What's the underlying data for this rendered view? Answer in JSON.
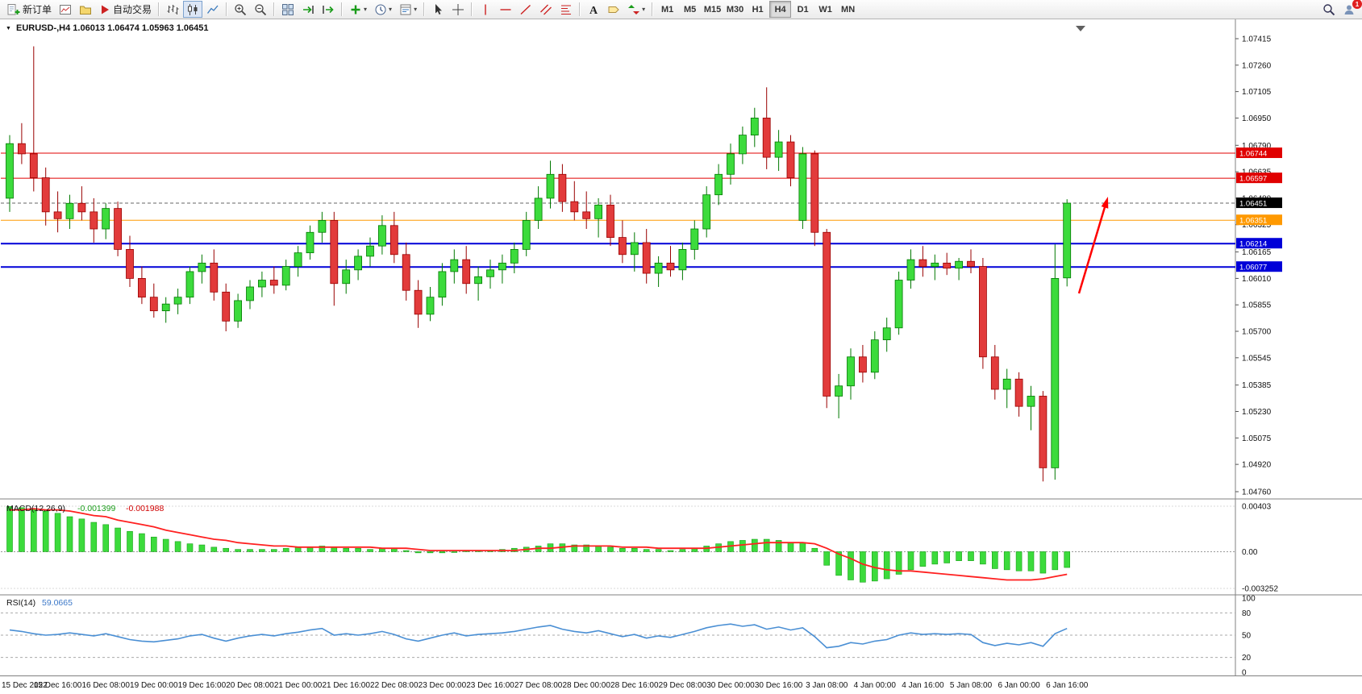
{
  "toolbar": {
    "new_order_label": "新订单",
    "autotrading_label": "自动交易",
    "timeframes": [
      "M1",
      "M5",
      "M15",
      "M30",
      "H1",
      "H4",
      "D1",
      "W1",
      "MN"
    ],
    "active_timeframe": "H4",
    "notification_badge": "1",
    "icon_names": [
      "new-order-icon",
      "new-chart-icon",
      "profiles-icon",
      "autotrading-icon",
      "bars-chart-icon",
      "candlestick-chart-icon",
      "line-chart-icon",
      "zoom-in-icon",
      "zoom-out-icon",
      "tile-windows-icon",
      "auto-scroll-icon",
      "chart-shift-icon",
      "indicators-plus-icon",
      "periods-clock-icon",
      "templates-icon",
      "cursor-icon",
      "crosshair-icon",
      "vertical-line-icon",
      "horizontal-line-icon",
      "trendline-icon",
      "channel-icon",
      "fibonacci-icon",
      "text-icon",
      "label-icon",
      "arrows-icon",
      "search-icon",
      "account-icon"
    ]
  },
  "chart": {
    "symbol_period": "EURUSD-,H4",
    "open": "1.06013",
    "high": "1.06474",
    "low": "1.05963",
    "close": "1.06451"
  },
  "chart_data": {
    "type": "candlestick",
    "symbol": "EURUSD",
    "period": "H4",
    "up_color": "#3CDB3C",
    "down_color": "#E23B3B",
    "candles": [
      [
        1.0648,
        1.0685,
        1.064,
        1.068
      ],
      [
        1.068,
        1.0692,
        1.0668,
        1.0674
      ],
      [
        1.0674,
        1.0737,
        1.0652,
        1.066
      ],
      [
        1.066,
        1.0666,
        1.0632,
        1.064
      ],
      [
        1.064,
        1.0652,
        1.0628,
        1.0636
      ],
      [
        1.0636,
        1.065,
        1.063,
        1.0645
      ],
      [
        1.0645,
        1.0655,
        1.0635,
        1.064
      ],
      [
        1.064,
        1.0648,
        1.0622,
        1.063
      ],
      [
        1.063,
        1.0645,
        1.0624,
        1.0642
      ],
      [
        1.0642,
        1.0646,
        1.0614,
        1.0618
      ],
      [
        1.0618,
        1.0626,
        1.0596,
        1.0601
      ],
      [
        1.0601,
        1.0608,
        1.0586,
        1.059
      ],
      [
        1.059,
        1.0598,
        1.0578,
        1.0582
      ],
      [
        1.0582,
        1.059,
        1.0575,
        1.0586
      ],
      [
        1.0586,
        1.0595,
        1.058,
        1.059
      ],
      [
        1.059,
        1.0608,
        1.0586,
        1.0605
      ],
      [
        1.0605,
        1.0615,
        1.0598,
        1.061
      ],
      [
        1.061,
        1.0618,
        1.0588,
        1.0593
      ],
      [
        1.0593,
        1.0598,
        1.057,
        1.0576
      ],
      [
        1.0576,
        1.0592,
        1.0572,
        1.0588
      ],
      [
        1.0588,
        1.06,
        1.0583,
        1.0596
      ],
      [
        1.0596,
        1.0605,
        1.059,
        1.06
      ],
      [
        1.06,
        1.0608,
        1.0592,
        1.0597
      ],
      [
        1.0597,
        1.0612,
        1.0594,
        1.0608
      ],
      [
        1.0608,
        1.062,
        1.0602,
        1.0616
      ],
      [
        1.0616,
        1.0632,
        1.0612,
        1.0628
      ],
      [
        1.0628,
        1.064,
        1.0622,
        1.0635
      ],
      [
        1.0635,
        1.064,
        1.0585,
        1.0598
      ],
      [
        1.0598,
        1.0612,
        1.0592,
        1.0606
      ],
      [
        1.0606,
        1.0618,
        1.06,
        1.0614
      ],
      [
        1.0614,
        1.0625,
        1.0608,
        1.062
      ],
      [
        1.062,
        1.0638,
        1.0615,
        1.0632
      ],
      [
        1.0632,
        1.064,
        1.061,
        1.0615
      ],
      [
        1.0615,
        1.0622,
        1.0588,
        1.0594
      ],
      [
        1.0594,
        1.06,
        1.0572,
        1.058
      ],
      [
        1.058,
        1.0596,
        1.0576,
        1.059
      ],
      [
        1.059,
        1.061,
        1.0585,
        1.0605
      ],
      [
        1.0605,
        1.0618,
        1.0598,
        1.0612
      ],
      [
        1.0612,
        1.062,
        1.0592,
        1.0598
      ],
      [
        1.0598,
        1.0608,
        1.0588,
        1.0602
      ],
      [
        1.0602,
        1.0612,
        1.0595,
        1.0606
      ],
      [
        1.0606,
        1.0615,
        1.0598,
        1.061
      ],
      [
        1.061,
        1.0622,
        1.0604,
        1.0618
      ],
      [
        1.0618,
        1.064,
        1.0614,
        1.0635
      ],
      [
        1.0635,
        1.0655,
        1.063,
        1.0648
      ],
      [
        1.0648,
        1.067,
        1.0642,
        1.0662
      ],
      [
        1.0662,
        1.0668,
        1.064,
        1.0646
      ],
      [
        1.0646,
        1.0658,
        1.0635,
        1.064
      ],
      [
        1.064,
        1.0652,
        1.063,
        1.0636
      ],
      [
        1.0636,
        1.0648,
        1.0625,
        1.0644
      ],
      [
        1.0644,
        1.065,
        1.062,
        1.0625
      ],
      [
        1.0625,
        1.0635,
        1.061,
        1.0615
      ],
      [
        1.0615,
        1.0628,
        1.0605,
        1.0622
      ],
      [
        1.0622,
        1.063,
        1.0598,
        1.0604
      ],
      [
        1.0604,
        1.0614,
        1.0596,
        1.061
      ],
      [
        1.061,
        1.062,
        1.0602,
        1.0606
      ],
      [
        1.0606,
        1.0622,
        1.06,
        1.0618
      ],
      [
        1.0618,
        1.0635,
        1.0612,
        1.063
      ],
      [
        1.063,
        1.0655,
        1.0625,
        1.065
      ],
      [
        1.065,
        1.0668,
        1.0644,
        1.0662
      ],
      [
        1.0662,
        1.068,
        1.0656,
        1.0674
      ],
      [
        1.0674,
        1.069,
        1.0668,
        1.0685
      ],
      [
        1.0685,
        1.0701,
        1.0678,
        1.0695
      ],
      [
        1.0695,
        1.0713,
        1.0665,
        1.0672
      ],
      [
        1.0672,
        1.0688,
        1.0664,
        1.0681
      ],
      [
        1.0681,
        1.0685,
        1.0655,
        1.066
      ],
      [
        1.0635,
        1.0678,
        1.063,
        1.0674
      ],
      [
        1.0674,
        1.0676,
        1.062,
        1.0628
      ],
      [
        1.0628,
        1.063,
        1.0525,
        1.0532
      ],
      [
        1.0532,
        1.0545,
        1.0519,
        1.0538
      ],
      [
        1.0538,
        1.056,
        1.053,
        1.0555
      ],
      [
        1.0555,
        1.0562,
        1.054,
        1.0546
      ],
      [
        1.0546,
        1.057,
        1.0542,
        1.0565
      ],
      [
        1.0565,
        1.0578,
        1.0558,
        1.0572
      ],
      [
        1.0572,
        1.0605,
        1.0568,
        1.06
      ],
      [
        1.06,
        1.0618,
        1.0595,
        1.0612
      ],
      [
        1.0612,
        1.062,
        1.0602,
        1.0608
      ],
      [
        1.0608,
        1.0615,
        1.06,
        1.061
      ],
      [
        1.061,
        1.0616,
        1.0603,
        1.0607
      ],
      [
        1.0607,
        1.0613,
        1.06,
        1.0611
      ],
      [
        1.0611,
        1.0618,
        1.0604,
        1.0608
      ],
      [
        1.0608,
        1.0613,
        1.0548,
        1.0555
      ],
      [
        1.0555,
        1.0562,
        1.053,
        1.0536
      ],
      [
        1.0536,
        1.0548,
        1.0525,
        1.0542
      ],
      [
        1.0542,
        1.0546,
        1.052,
        1.0526
      ],
      [
        1.0526,
        1.0538,
        1.0512,
        1.0532
      ],
      [
        1.0532,
        1.0535,
        1.0482,
        1.049
      ],
      [
        1.049,
        1.0621,
        1.0483,
        1.0601
      ],
      [
        1.06013,
        1.06474,
        1.05963,
        1.06451
      ]
    ],
    "time_labels": [
      "15 Dec 2022",
      "15 Dec 16:00",
      "16 Dec 08:00",
      "19 Dec 00:00",
      "19 Dec 16:00",
      "20 Dec 08:00",
      "21 Dec 00:00",
      "21 Dec 16:00",
      "22 Dec 08:00",
      "23 Dec 00:00",
      "23 Dec 16:00",
      "27 Dec 08:00",
      "28 Dec 00:00",
      "28 Dec 16:00",
      "29 Dec 08:00",
      "30 Dec 00:00",
      "30 Dec 16:00",
      "3 Jan 08:00",
      "4 Jan 00:00",
      "4 Jan 16:00",
      "5 Jan 08:00",
      "6 Jan 00:00",
      "6 Jan 16:00"
    ],
    "label_every": 4,
    "price_axis": {
      "max": 1.07415,
      "min": 1.0476,
      "ticks": [
        "1.07415",
        "1.07260",
        "1.07105",
        "1.06950",
        "1.06790",
        "1.06635",
        "1.06480",
        "1.06325",
        "1.06165",
        "1.06010",
        "1.05855",
        "1.05700",
        "1.05545",
        "1.05385",
        "1.05230",
        "1.05075",
        "1.04920",
        "1.04760"
      ]
    },
    "hlines": [
      {
        "name": "resistance-1",
        "price": "1.06744",
        "value": 1.06744,
        "color": "#E00000",
        "width": 1
      },
      {
        "name": "resistance-2",
        "price": "1.06597",
        "value": 1.06597,
        "color": "#E00000",
        "width": 1
      },
      {
        "name": "pivot-orange",
        "price": "1.06351",
        "value": 1.06351,
        "color": "#FF9900",
        "width": 1
      },
      {
        "name": "support-1",
        "price": "1.06214",
        "value": 1.06214,
        "color": "#0000D8",
        "width": 2
      },
      {
        "name": "support-2",
        "price": "1.06077",
        "value": 1.06077,
        "color": "#0000D8",
        "width": 2
      }
    ],
    "current_price": {
      "text": "1.06451",
      "value": 1.06451,
      "tag_bg": "#000000"
    },
    "macd": {
      "label": "MACD(12,26,9)",
      "value": "-0.001399",
      "signal_value": "-0.001988",
      "scale": [
        "0.00403",
        "0.00",
        "-0.003252"
      ],
      "scale_max": 0.00403,
      "scale_min": -0.003252,
      "hist_color": "#3CDB3C",
      "signal_color": "#FF2020",
      "histogram": [
        0.004,
        0.0039,
        0.0038,
        0.0036,
        0.0034,
        0.0031,
        0.0029,
        0.0026,
        0.0024,
        0.0021,
        0.0018,
        0.0016,
        0.0013,
        0.0011,
        0.0009,
        0.0007,
        0.0006,
        0.0004,
        0.0003,
        0.0002,
        0.0002,
        0.0002,
        0.0002,
        0.0003,
        0.0004,
        0.0004,
        0.0005,
        0.0004,
        0.0003,
        0.0003,
        0.0002,
        0.0003,
        0.0003,
        0.0001,
        -0.0001,
        -0.0001,
        -0.0001,
        0.0,
        0.0001,
        0.0001,
        0.0001,
        0.0002,
        0.0003,
        0.0004,
        0.0005,
        0.0007,
        0.0007,
        0.0006,
        0.0006,
        0.0005,
        0.0004,
        0.0003,
        0.0003,
        0.0002,
        0.0002,
        0.0001,
        0.0002,
        0.0003,
        0.0005,
        0.0007,
        0.0009,
        0.001,
        0.0011,
        0.0011,
        0.001,
        0.0008,
        0.0008,
        0.0003,
        -0.0012,
        -0.0021,
        -0.0025,
        -0.0027,
        -0.0026,
        -0.0024,
        -0.002,
        -0.0016,
        -0.0013,
        -0.0011,
        -0.001,
        -0.0008,
        -0.0008,
        -0.0011,
        -0.0015,
        -0.0016,
        -0.0017,
        -0.0017,
        -0.0019,
        -0.0016,
        -0.0014
      ],
      "signal": [
        0.0037,
        0.0037,
        0.0038,
        0.0037,
        0.0037,
        0.0036,
        0.0034,
        0.0032,
        0.0031,
        0.0028,
        0.0026,
        0.0024,
        0.0022,
        0.0019,
        0.0017,
        0.0015,
        0.0013,
        0.0011,
        0.001,
        0.0008,
        0.0007,
        0.0006,
        0.0005,
        0.0005,
        0.0004,
        0.0004,
        0.0004,
        0.0004,
        0.0004,
        0.0004,
        0.0004,
        0.0003,
        0.0003,
        0.0003,
        0.0002,
        0.0001,
        0.0001,
        0.0001,
        0.0001,
        0.0001,
        0.0001,
        0.0001,
        0.0001,
        0.0002,
        0.0003,
        0.0003,
        0.0004,
        0.0005,
        0.0005,
        0.0005,
        0.0005,
        0.0004,
        0.0004,
        0.0004,
        0.0003,
        0.0003,
        0.0003,
        0.0003,
        0.0003,
        0.0004,
        0.0005,
        0.0006,
        0.0007,
        0.0008,
        0.0008,
        0.0008,
        0.0008,
        0.0007,
        0.0003,
        -0.0002,
        -0.0006,
        -0.0011,
        -0.0014,
        -0.0016,
        -0.0017,
        -0.0017,
        -0.0018,
        -0.0019,
        -0.002,
        -0.0021,
        -0.0022,
        -0.0023,
        -0.0024,
        -0.0025,
        -0.0025,
        -0.0025,
        -0.0024,
        -0.0022,
        -0.002
      ]
    },
    "rsi": {
      "label": "RSI(14)",
      "value": "59.0665",
      "color": "#4A8FD4",
      "levels": [
        80,
        50,
        20
      ],
      "scale": [
        "100",
        "80",
        "50",
        "20",
        "0"
      ],
      "scale_values": [
        100,
        80,
        50,
        20,
        0
      ],
      "values": [
        57,
        55,
        52,
        50,
        51,
        53,
        51,
        49,
        52,
        48,
        44,
        42,
        41,
        43,
        45,
        49,
        51,
        46,
        42,
        46,
        49,
        51,
        49,
        52,
        54,
        57,
        59,
        50,
        52,
        50,
        52,
        55,
        51,
        45,
        42,
        46,
        50,
        53,
        49,
        51,
        52,
        53,
        55,
        58,
        61,
        63,
        58,
        55,
        53,
        56,
        52,
        48,
        51,
        46,
        49,
        47,
        51,
        55,
        60,
        63,
        65,
        62,
        64,
        58,
        61,
        57,
        60,
        48,
        33,
        35,
        40,
        38,
        42,
        44,
        50,
        53,
        51,
        52,
        51,
        52,
        51,
        40,
        36,
        39,
        37,
        40,
        35,
        52,
        59.07
      ]
    },
    "annotation_arrow": {
      "color": "#FF0000"
    }
  }
}
